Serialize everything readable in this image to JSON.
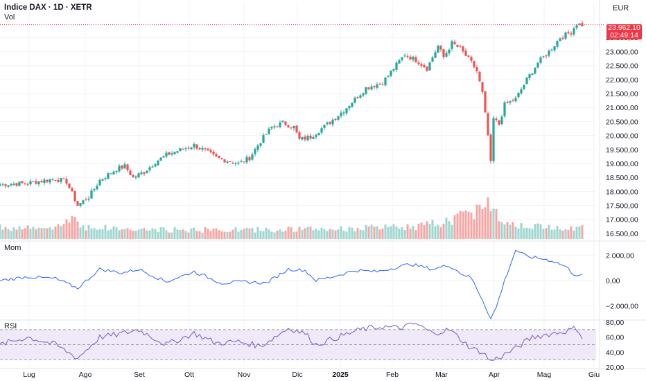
{
  "header": {
    "title": "Indice DAX · 1D · XETR",
    "vol_label": "Vol",
    "currency": "EUR"
  },
  "price_tag": {
    "price": "23.962,10",
    "countdown": "02:49:14"
  },
  "panes": {
    "momentum_label": "Mom",
    "rsi_label": "RSI"
  },
  "colors": {
    "up": "#26a69a",
    "down": "#ef5350",
    "up_vol": "#9ed6cf",
    "down_vol": "#f4a6a4",
    "momentum_line": "#2962ff",
    "rsi_line": "#7e57c2",
    "rsi_band": "#efe9f9",
    "price_tag": "#f23645",
    "grid": "#f0f3fa",
    "separator": "#e0e3eb"
  },
  "chart_data": [
    {
      "type": "candlestick",
      "title": "Indice DAX · 1D · XETR",
      "y_unit": "EUR",
      "ylim": [
        16300,
        24150
      ],
      "y_ticks": [
        "16.500,00",
        "17.000,00",
        "17.500,00",
        "18.000,00",
        "18.500,00",
        "19.000,00",
        "19.500,00",
        "20.000,00",
        "20.500,00",
        "21.000,00",
        "21.500,00",
        "22.000,00",
        "22.500,00",
        "23.000,00",
        "23.500,00"
      ],
      "x_ticks": [
        "Lug",
        "Ago",
        "Set",
        "Ott",
        "Nov",
        "Dic",
        "2025",
        "Feb",
        "Mar",
        "Apr",
        "Mag",
        "Giu"
      ],
      "last_price": 23962.1,
      "close_waypoints": [
        [
          0,
          18250
        ],
        [
          10,
          18300
        ],
        [
          20,
          18450
        ],
        [
          24,
          18350
        ],
        [
          28,
          17500
        ],
        [
          32,
          17800
        ],
        [
          36,
          18400
        ],
        [
          42,
          18800
        ],
        [
          45,
          18900
        ],
        [
          48,
          18500
        ],
        [
          52,
          18700
        ],
        [
          56,
          19050
        ],
        [
          60,
          19300
        ],
        [
          64,
          19450
        ],
        [
          70,
          19650
        ],
        [
          74,
          19450
        ],
        [
          78,
          19200
        ],
        [
          82,
          19100
        ],
        [
          86,
          19000
        ],
        [
          90,
          19200
        ],
        [
          94,
          19800
        ],
        [
          98,
          20300
        ],
        [
          102,
          20450
        ],
        [
          106,
          20300
        ],
        [
          108,
          19850
        ],
        [
          112,
          19950
        ],
        [
          118,
          20400
        ],
        [
          124,
          20900
        ],
        [
          128,
          21300
        ],
        [
          132,
          21700
        ],
        [
          138,
          21900
        ],
        [
          142,
          22400
        ],
        [
          146,
          22900
        ],
        [
          150,
          22700
        ],
        [
          154,
          22400
        ],
        [
          158,
          23200
        ],
        [
          160,
          22800
        ],
        [
          163,
          23300
        ],
        [
          166,
          23100
        ],
        [
          170,
          22600
        ],
        [
          172,
          22300
        ],
        [
          174,
          21500
        ],
        [
          176,
          20000
        ],
        [
          177,
          19000
        ],
        [
          178,
          20600
        ],
        [
          180,
          20400
        ],
        [
          182,
          21100
        ],
        [
          186,
          21300
        ],
        [
          190,
          22000
        ],
        [
          194,
          22600
        ],
        [
          198,
          23000
        ],
        [
          202,
          23500
        ],
        [
          206,
          23700
        ],
        [
          208,
          24000
        ],
        [
          210,
          23950
        ]
      ],
      "volume_relative_waypoints": [
        [
          0,
          0.28
        ],
        [
          20,
          0.24
        ],
        [
          26,
          0.55
        ],
        [
          30,
          0.3
        ],
        [
          50,
          0.22
        ],
        [
          90,
          0.22
        ],
        [
          120,
          0.24
        ],
        [
          150,
          0.3
        ],
        [
          160,
          0.4
        ],
        [
          172,
          0.7
        ],
        [
          176,
          1.0
        ],
        [
          180,
          0.5
        ],
        [
          190,
          0.3
        ],
        [
          210,
          0.28
        ]
      ]
    },
    {
      "type": "line",
      "name": "Mom",
      "ylim": [
        -3000,
        3000
      ],
      "y_ticks": [
        "2.000,00",
        "0,00",
        "−2.000,00"
      ],
      "values_waypoints": [
        [
          0,
          0
        ],
        [
          10,
          300
        ],
        [
          20,
          150
        ],
        [
          28,
          -600
        ],
        [
          36,
          900
        ],
        [
          44,
          600
        ],
        [
          50,
          900
        ],
        [
          60,
          -100
        ],
        [
          70,
          700
        ],
        [
          80,
          -200
        ],
        [
          88,
          -100
        ],
        [
          96,
          -200
        ],
        [
          104,
          900
        ],
        [
          110,
          800
        ],
        [
          114,
          0
        ],
        [
          120,
          300
        ],
        [
          128,
          800
        ],
        [
          136,
          700
        ],
        [
          142,
          1000
        ],
        [
          148,
          1300
        ],
        [
          156,
          900
        ],
        [
          162,
          1200
        ],
        [
          166,
          600
        ],
        [
          170,
          200
        ],
        [
          174,
          -1500
        ],
        [
          177,
          -3000
        ],
        [
          179,
          -2100
        ],
        [
          182,
          0
        ],
        [
          186,
          2400
        ],
        [
          190,
          1900
        ],
        [
          196,
          1700
        ],
        [
          200,
          1500
        ],
        [
          204,
          1100
        ],
        [
          207,
          500
        ],
        [
          210,
          400
        ]
      ]
    },
    {
      "type": "line",
      "name": "RSI",
      "ylim": [
        20,
        80
      ],
      "y_ticks": [
        "80,00",
        "60,00",
        "40,00",
        "20,00"
      ],
      "bands": [
        30,
        50,
        70
      ],
      "values_waypoints": [
        [
          0,
          50
        ],
        [
          10,
          60
        ],
        [
          20,
          50
        ],
        [
          28,
          32
        ],
        [
          36,
          60
        ],
        [
          42,
          63
        ],
        [
          50,
          70
        ],
        [
          60,
          50
        ],
        [
          70,
          65
        ],
        [
          78,
          52
        ],
        [
          86,
          54
        ],
        [
          94,
          48
        ],
        [
          104,
          72
        ],
        [
          110,
          65
        ],
        [
          114,
          50
        ],
        [
          122,
          60
        ],
        [
          130,
          70
        ],
        [
          138,
          74
        ],
        [
          144,
          72
        ],
        [
          150,
          78
        ],
        [
          156,
          65
        ],
        [
          162,
          70
        ],
        [
          166,
          58
        ],
        [
          170,
          45
        ],
        [
          174,
          40
        ],
        [
          177,
          28
        ],
        [
          180,
          33
        ],
        [
          186,
          45
        ],
        [
          192,
          60
        ],
        [
          198,
          64
        ],
        [
          204,
          68
        ],
        [
          208,
          72
        ],
        [
          210,
          60
        ]
      ]
    }
  ]
}
